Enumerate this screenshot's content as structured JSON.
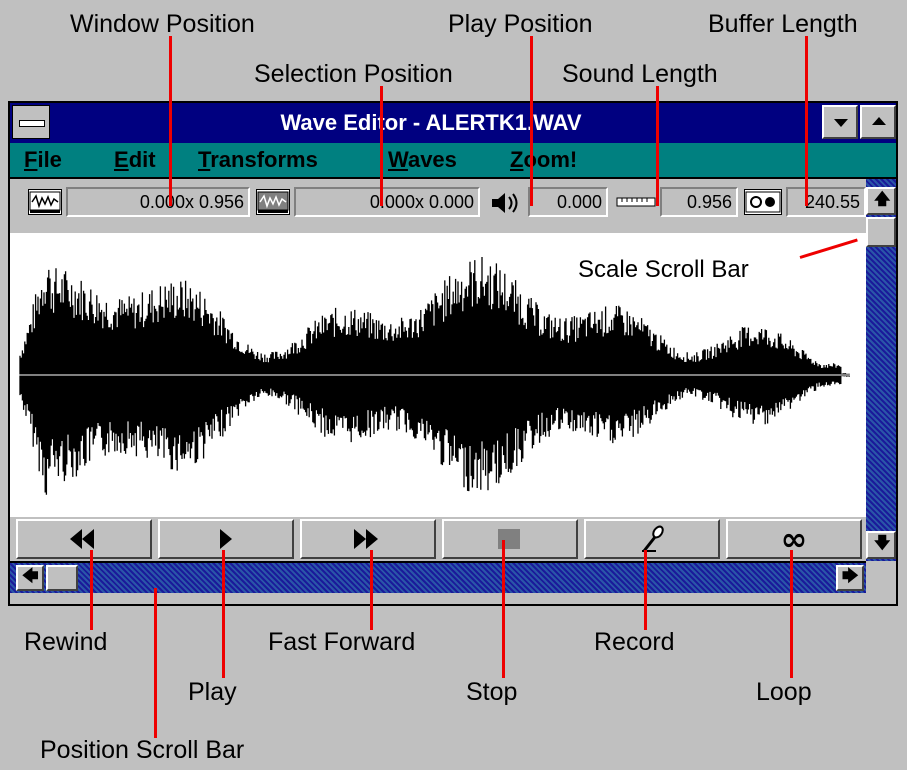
{
  "window": {
    "title": "Wave Editor - ALERTK1.WAV"
  },
  "menu": {
    "items": [
      {
        "label": "File",
        "mnemonic": "F",
        "rest": "ile"
      },
      {
        "label": "Edit",
        "mnemonic": "E",
        "rest": "dit"
      },
      {
        "label": "Transforms",
        "mnemonic": "T",
        "rest": "ransforms"
      },
      {
        "label": "Waves",
        "mnemonic": "W",
        "rest": "aves"
      },
      {
        "label": "Zoom!",
        "mnemonic": "Z",
        "rest": "oom!"
      }
    ]
  },
  "status": {
    "window_position": "0.000x 0.956",
    "selection_position": "0.000x 0.000",
    "play_position": "0.000",
    "sound_length": "0.956",
    "buffer_length": "240.55"
  },
  "callouts": {
    "window_position": "Window Position",
    "selection_position": "Selection Position",
    "play_position": "Play Position",
    "sound_length": "Sound Length",
    "buffer_length": "Buffer Length",
    "scale_scroll_bar": "Scale Scroll Bar",
    "rewind": "Rewind",
    "play": "Play",
    "fast_forward": "Fast Forward",
    "stop": "Stop",
    "record": "Record",
    "loop": "Loop",
    "position_scroll_bar": "Position Scroll Bar"
  },
  "transport": {
    "loop_symbol": "∞"
  },
  "icons": [
    "system-menu-icon",
    "minimize-icon",
    "maximize-icon",
    "waveform-icon",
    "selection-icon",
    "speaker-icon",
    "ruler-icon",
    "tape-icon",
    "rewind-icon",
    "play-icon",
    "fast-forward-icon",
    "stop-icon",
    "microphone-icon",
    "loop-icon"
  ],
  "colors": {
    "title_bar": "#000080",
    "menu_bar": "#008080",
    "annotation": "#ee0000",
    "background": "#c0c0c0"
  }
}
